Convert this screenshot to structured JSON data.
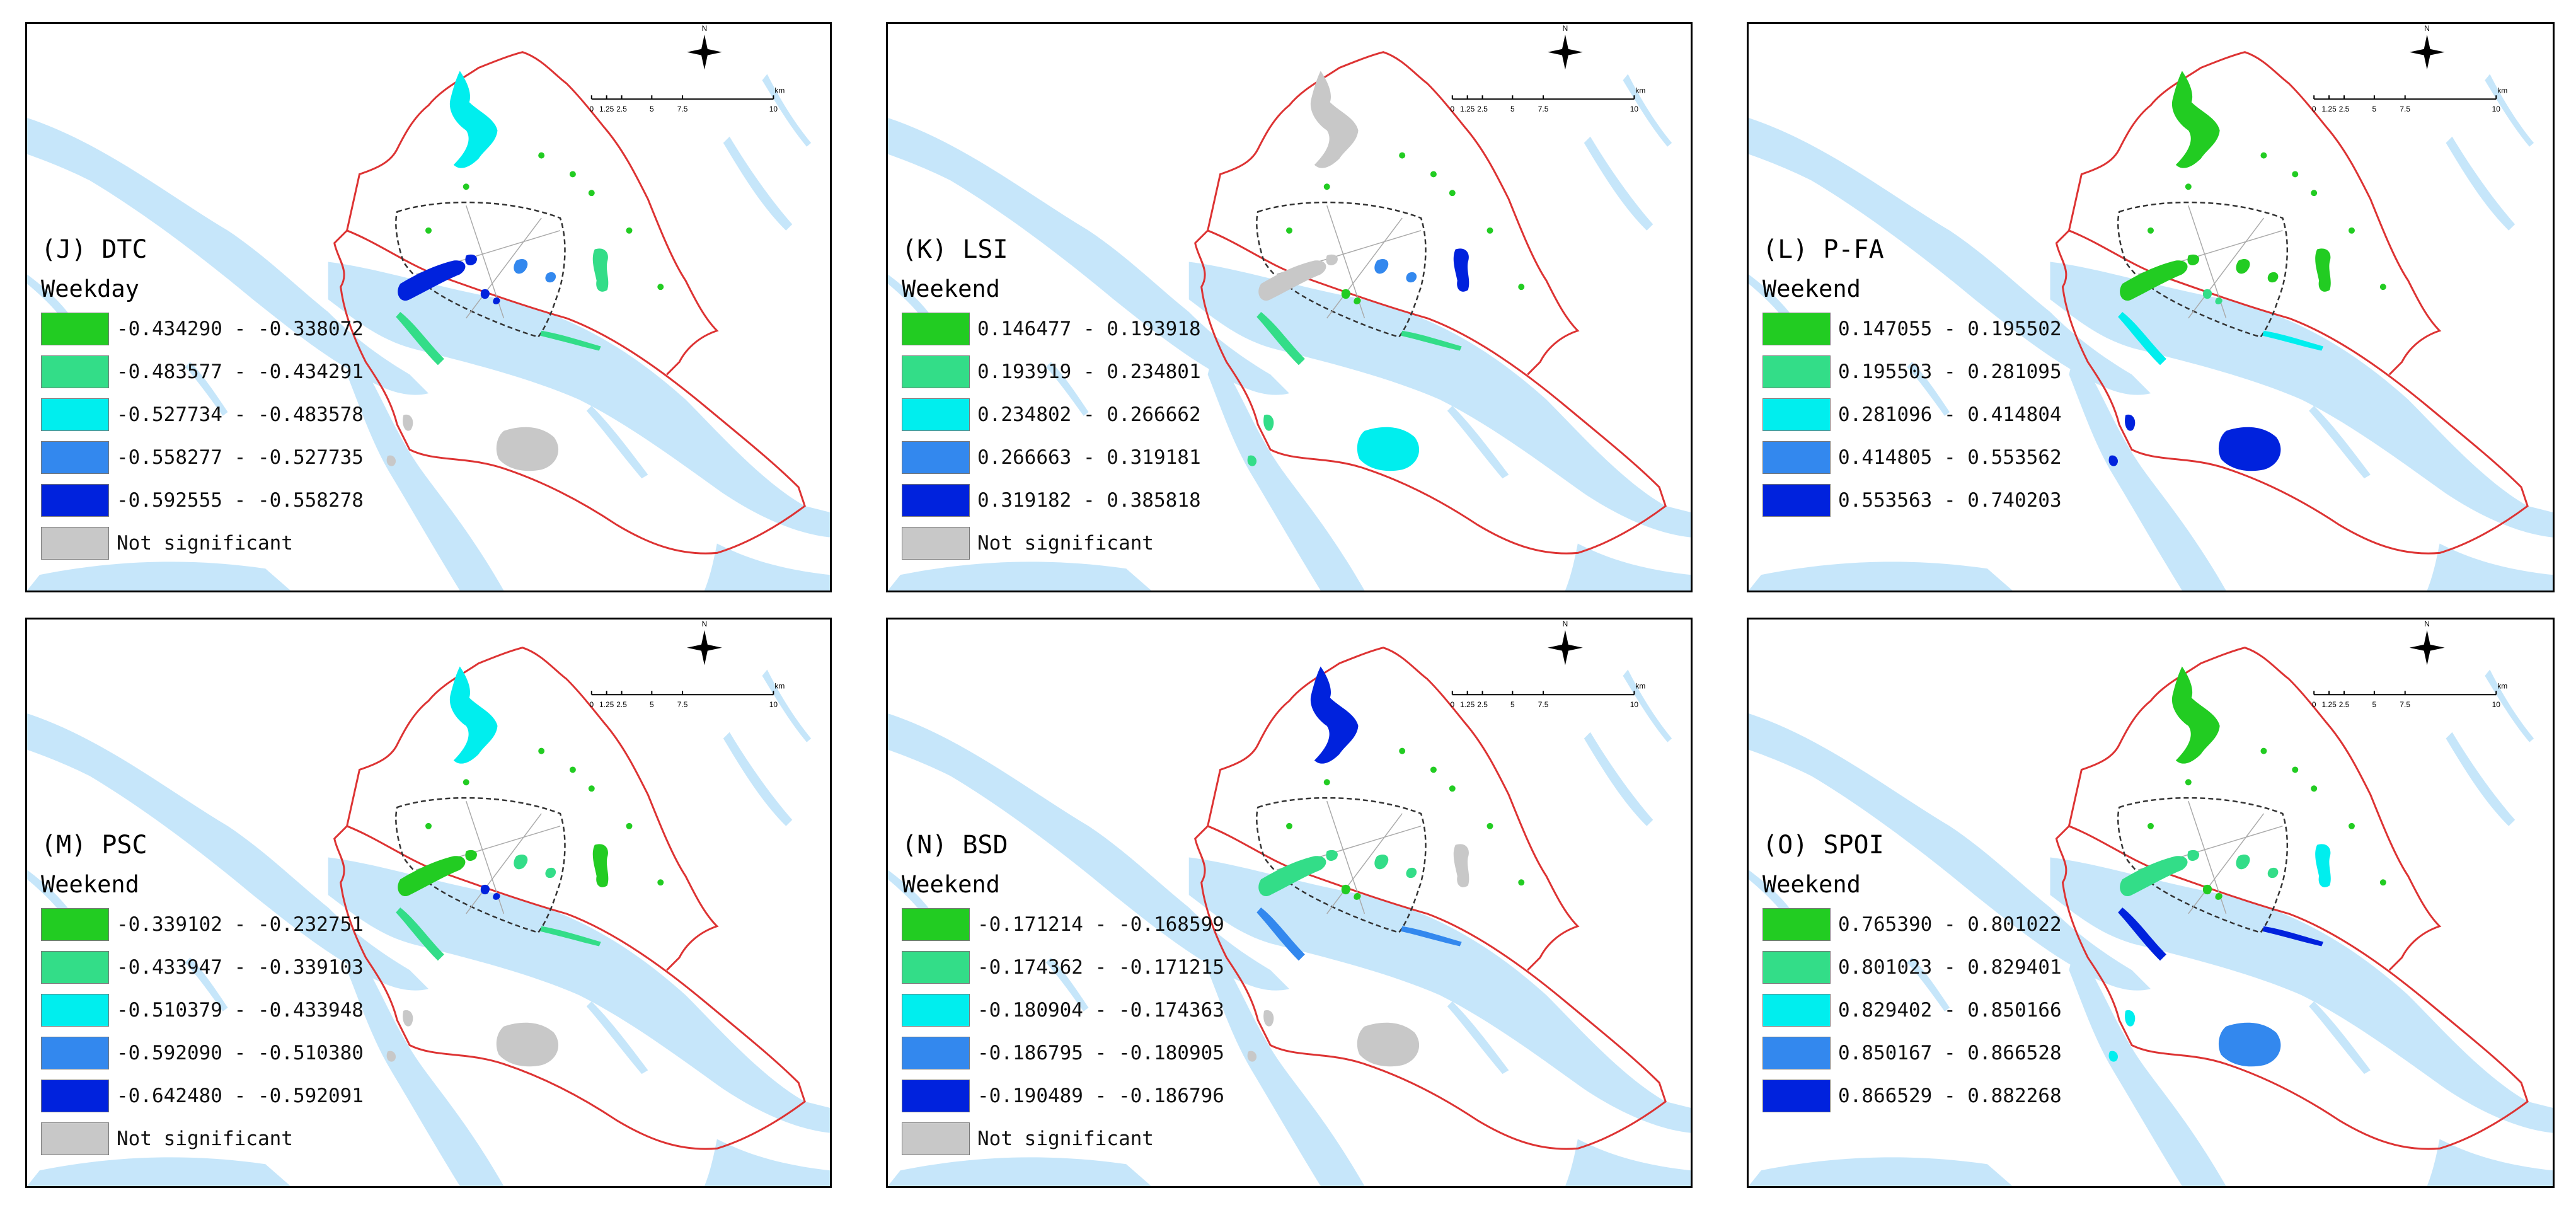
{
  "colors": {
    "class1": "#22cc22",
    "class2": "#33dd88",
    "class3": "#00eeee",
    "class4": "#3388ee",
    "class5": "#0022dd",
    "not_significant": "#c8c8c8",
    "water": "#c6e6fa",
    "boundary": "#dd3333"
  },
  "scale": {
    "ticks": [
      "0",
      "1.25",
      "2.5",
      "5",
      "7.5",
      "10"
    ],
    "unit": "km"
  },
  "compass_label": "N",
  "panels": [
    {
      "title": "(J) DTC",
      "period": "Weekday",
      "classes": [
        "-0.434290 - -0.338072",
        "-0.483577 - -0.434291",
        "-0.527734 - -0.483578",
        "-0.558277 - -0.527735",
        "-0.592555 - -0.558278"
      ],
      "not_significant": "Not significant",
      "patches": {
        "north": "class3",
        "west": "class5",
        "centerA": "class4",
        "centerB": "class5",
        "east": "class2",
        "riverbank": "class2",
        "south": "ns",
        "southwest": "ns"
      }
    },
    {
      "title": "(K) LSI",
      "period": "Weekend",
      "classes": [
        "0.146477 - 0.193918",
        "0.193919 - 0.234801",
        "0.234802 - 0.266662",
        "0.266663 - 0.319181",
        "0.319182 - 0.385818"
      ],
      "not_significant": "Not significant",
      "patches": {
        "north": "ns",
        "west": "ns",
        "centerA": "class4",
        "centerB": "class1",
        "east": "class5",
        "riverbank": "class2",
        "south": "class3",
        "southwest": "class2"
      }
    },
    {
      "title": "(L) P-FA",
      "period": "Weekend",
      "classes": [
        "0.147055 - 0.195502",
        "0.195503 - 0.281095",
        "0.281096 - 0.414804",
        "0.414805 - 0.553562",
        "0.553563 - 0.740203"
      ],
      "not_significant": "",
      "patches": {
        "north": "class1",
        "west": "class1",
        "centerA": "class1",
        "centerB": "class2",
        "east": "class1",
        "riverbank": "class3",
        "south": "class5",
        "southwest": "class5"
      }
    },
    {
      "title": "(M) PSC",
      "period": "Weekend",
      "classes": [
        "-0.339102 - -0.232751",
        "-0.433947 - -0.339103",
        "-0.510379 - -0.433948",
        "-0.592090 - -0.510380",
        "-0.642480 - -0.592091"
      ],
      "not_significant": "Not significant",
      "patches": {
        "north": "class3",
        "west": "class1",
        "centerA": "class2",
        "centerB": "class5",
        "east": "class1",
        "riverbank": "class2",
        "south": "ns",
        "southwest": "ns"
      }
    },
    {
      "title": "(N) BSD",
      "period": "Weekend",
      "classes": [
        "-0.171214 - -0.168599",
        "-0.174362 - -0.171215",
        "-0.180904 - -0.174363",
        "-0.186795 - -0.180905",
        "-0.190489 - -0.186796"
      ],
      "not_significant": "Not significant",
      "patches": {
        "north": "class5",
        "west": "class2",
        "centerA": "class2",
        "centerB": "class1",
        "east": "ns",
        "riverbank": "class4",
        "south": "ns",
        "southwest": "ns"
      }
    },
    {
      "title": "(O) SPOI",
      "period": "Weekend",
      "classes": [
        "0.765390 - 0.801022",
        "0.801023 - 0.829401",
        "0.829402 - 0.850166",
        "0.850167 - 0.866528",
        "0.866529 - 0.882268"
      ],
      "not_significant": "",
      "patches": {
        "north": "class1",
        "west": "class2",
        "centerA": "class2",
        "centerB": "class1",
        "east": "class3",
        "riverbank": "class5",
        "south": "class4",
        "southwest": "class3"
      }
    }
  ]
}
